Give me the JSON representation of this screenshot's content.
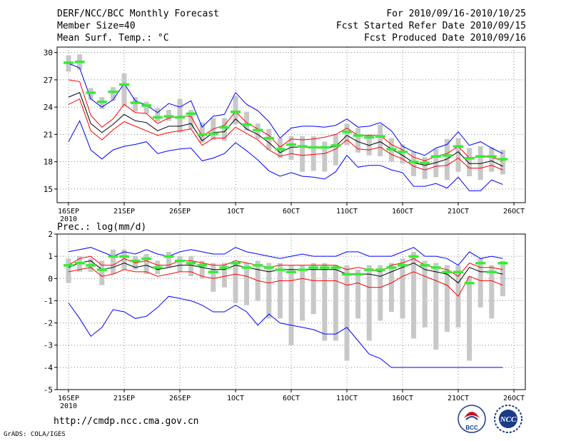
{
  "header": {
    "title": "DERF/NCC/BCC Monthly Forecast",
    "member_size": "Member Size=40",
    "variable": "Mean Surf. Temp.: °C",
    "forecast_period": "For 2010/09/16-2010/10/25",
    "started_date": "Fcst Started Refer Date 2010/09/15",
    "produced_date": "Fcst Produced Date 2010/09/16"
  },
  "footer": {
    "url": "http://cmdp.ncc.cma.gov.cn",
    "credit": "GrADS: COLA/IGES",
    "logo_bcc": "BCC",
    "logo_ncc": "NCC"
  },
  "colors": {
    "max_min": "#0000ff",
    "band": "#ff0000",
    "mean": "#000000",
    "box": "#c8c8c8",
    "median": "#33ee33"
  },
  "chart_data": [
    {
      "type": "line",
      "title": "Mean Surf. Temp.: °C",
      "xlabel": "",
      "ylabel": "°C",
      "ylim": [
        13.5,
        30.6
      ],
      "yticks": [
        15,
        18,
        21,
        24,
        27,
        30
      ],
      "xlim": [
        0,
        40
      ],
      "xticks": [
        {
          "x": 0,
          "label": "16SEP",
          "sub": "2010"
        },
        {
          "x": 5,
          "label": "21SEP"
        },
        {
          "x": 10,
          "label": "26SEP"
        },
        {
          "x": 15,
          "label": "1OCT"
        },
        {
          "x": 20,
          "label": "6OCT"
        },
        {
          "x": 25,
          "label": "11OCT"
        },
        {
          "x": 30,
          "label": "16OCT"
        },
        {
          "x": 35,
          "label": "21OCT"
        },
        {
          "x": 40,
          "label": "26OCT"
        }
      ],
      "grid": true,
      "x": [
        0,
        1,
        2,
        3,
        4,
        5,
        6,
        7,
        8,
        9,
        10,
        11,
        12,
        13,
        14,
        15,
        16,
        17,
        18,
        19,
        20,
        21,
        22,
        23,
        24,
        25,
        26,
        27,
        28,
        29,
        30,
        31,
        32,
        33,
        34,
        35,
        36,
        37,
        38,
        39
      ],
      "series": [
        {
          "name": "max",
          "values": [
            28.8,
            28.3,
            24.9,
            24.0,
            24.8,
            26.6,
            24.7,
            24.2,
            23.4,
            24.4,
            24.0,
            24.7,
            21.8,
            23.0,
            23.2,
            25.6,
            24.3,
            23.6,
            22.4,
            20.6,
            21.7,
            21.9,
            21.9,
            21.8,
            22.0,
            22.7,
            21.8,
            21.9,
            22.3,
            21.4,
            19.7,
            19.1,
            18.7,
            19.5,
            19.9,
            21.3,
            19.8,
            20.2,
            19.5,
            18.9
          ]
        },
        {
          "name": "upper",
          "values": [
            27.0,
            26.8,
            23.1,
            21.8,
            22.7,
            24.3,
            23.4,
            23.3,
            22.2,
            22.8,
            23.0,
            23.0,
            20.8,
            21.6,
            22.0,
            23.5,
            22.3,
            21.6,
            20.9,
            19.6,
            20.5,
            20.4,
            20.5,
            20.7,
            21.0,
            21.7,
            20.9,
            20.9,
            20.9,
            19.9,
            19.3,
            18.5,
            18.1,
            18.6,
            18.9,
            19.7,
            18.4,
            18.6,
            18.5,
            18.1
          ]
        },
        {
          "name": "mean",
          "values": [
            25.1,
            25.6,
            22.2,
            21.2,
            22.1,
            23.2,
            22.5,
            22.3,
            21.4,
            21.9,
            21.9,
            22.2,
            20.3,
            21.2,
            21.3,
            22.7,
            21.6,
            21.0,
            20.1,
            19.0,
            19.6,
            19.6,
            19.6,
            19.5,
            19.7,
            20.9,
            20.2,
            19.8,
            20.2,
            19.4,
            18.7,
            17.9,
            17.6,
            17.9,
            18.3,
            19.1,
            17.8,
            17.8,
            18.1,
            17.5
          ]
        },
        {
          "name": "lower",
          "values": [
            24.3,
            24.9,
            21.4,
            20.4,
            21.5,
            22.4,
            21.9,
            21.4,
            20.9,
            21.2,
            21.4,
            21.6,
            19.8,
            20.6,
            20.6,
            21.8,
            21.1,
            20.4,
            19.3,
            18.6,
            18.9,
            18.7,
            18.8,
            18.9,
            19.4,
            20.4,
            19.4,
            19.3,
            19.6,
            18.8,
            18.3,
            17.5,
            17.1,
            17.5,
            17.6,
            18.4,
            17.3,
            17.3,
            17.6,
            17.1
          ]
        },
        {
          "name": "min",
          "values": [
            20.2,
            22.5,
            19.3,
            18.3,
            19.3,
            19.7,
            19.9,
            20.2,
            18.9,
            19.2,
            19.4,
            19.5,
            18.1,
            18.4,
            18.9,
            20.1,
            19.2,
            18.2,
            17.0,
            16.4,
            16.8,
            16.4,
            16.3,
            16.1,
            16.9,
            18.7,
            17.4,
            17.6,
            17.6,
            17.1,
            16.8,
            15.3,
            15.3,
            15.6,
            15.1,
            16.3,
            14.8,
            14.8,
            16.0,
            15.5
          ]
        }
      ],
      "boxes": [
        {
          "low": 27.9,
          "high": 29.7,
          "median": 28.9
        },
        {
          "low": 28.1,
          "high": 29.8,
          "median": 29.0
        },
        {
          "low": 24.8,
          "high": 26.1,
          "median": 25.6
        },
        {
          "low": 23.8,
          "high": 25.1,
          "median": 24.6
        },
        {
          "low": 24.7,
          "high": 26.2,
          "median": 25.7
        },
        {
          "low": 24.1,
          "high": 27.7,
          "median": 26.5
        },
        {
          "low": 23.5,
          "high": 25.1,
          "median": 24.5
        },
        {
          "low": 23.3,
          "high": 24.6,
          "median": 24.2
        },
        {
          "low": 22.4,
          "high": 23.9,
          "median": 22.9
        },
        {
          "low": 22.5,
          "high": 23.7,
          "median": 23.0
        },
        {
          "low": 21.2,
          "high": 24.9,
          "median": 22.9
        },
        {
          "low": 21.6,
          "high": 23.7,
          "median": 23.3
        },
        {
          "low": 20.1,
          "high": 22.3,
          "median": 21.0
        },
        {
          "low": 20.4,
          "high": 22.8,
          "median": 21.1
        },
        {
          "low": 20.3,
          "high": 22.8,
          "median": 21.8
        },
        {
          "low": 22.1,
          "high": 25.2,
          "median": 23.5
        },
        {
          "low": 21.4,
          "high": 23.5,
          "median": 22.1
        },
        {
          "low": 20.5,
          "high": 22.2,
          "median": 21.5
        },
        {
          "low": 19.3,
          "high": 21.6,
          "median": 20.6
        },
        {
          "low": 18.4,
          "high": 20.6,
          "median": 19.4
        },
        {
          "low": 18.2,
          "high": 20.8,
          "median": 19.9
        },
        {
          "low": 16.9,
          "high": 20.8,
          "median": 19.7
        },
        {
          "low": 17.0,
          "high": 20.8,
          "median": 19.6
        },
        {
          "low": 16.9,
          "high": 20.2,
          "median": 19.6
        },
        {
          "low": 17.6,
          "high": 21.0,
          "median": 19.8
        },
        {
          "low": 19.8,
          "high": 22.2,
          "median": 21.3
        },
        {
          "low": 19.0,
          "high": 21.7,
          "median": 20.9
        },
        {
          "low": 18.7,
          "high": 21.0,
          "median": 20.7
        },
        {
          "low": 18.6,
          "high": 22.1,
          "median": 20.8
        },
        {
          "low": 18.0,
          "high": 20.6,
          "median": 19.4
        },
        {
          "low": 17.8,
          "high": 19.9,
          "median": 19.1
        },
        {
          "low": 16.4,
          "high": 19.1,
          "median": 18.0
        },
        {
          "low": 16.1,
          "high": 18.5,
          "median": 17.9
        },
        {
          "low": 16.3,
          "high": 19.4,
          "median": 18.6
        },
        {
          "low": 16.0,
          "high": 20.5,
          "median": 18.7
        },
        {
          "low": 16.9,
          "high": 20.6,
          "median": 19.7
        },
        {
          "low": 16.4,
          "high": 19.5,
          "median": 18.4
        },
        {
          "low": 16.0,
          "high": 19.7,
          "median": 18.6
        },
        {
          "low": 16.9,
          "high": 19.6,
          "median": 18.6
        },
        {
          "low": 16.6,
          "high": 19.3,
          "median": 18.3
        }
      ]
    },
    {
      "type": "line",
      "title": "Prec.: log(mm/d)",
      "xlabel": "",
      "ylabel": "log(mm/d)",
      "ylim": [
        -5,
        2
      ],
      "yticks": [
        -5,
        -4,
        -3,
        -2,
        -1,
        0,
        1,
        2
      ],
      "xlim": [
        0,
        40
      ],
      "xticks": [
        {
          "x": 0,
          "label": "16SEP",
          "sub": "2010"
        },
        {
          "x": 5,
          "label": "21SEP"
        },
        {
          "x": 10,
          "label": "26SEP"
        },
        {
          "x": 15,
          "label": "1OCT"
        },
        {
          "x": 20,
          "label": "6OCT"
        },
        {
          "x": 25,
          "label": "11OCT"
        },
        {
          "x": 30,
          "label": "16OCT"
        },
        {
          "x": 35,
          "label": "21OCT"
        },
        {
          "x": 40,
          "label": "26OCT"
        }
      ],
      "grid": true,
      "x": [
        0,
        1,
        2,
        3,
        4,
        5,
        6,
        7,
        8,
        9,
        10,
        11,
        12,
        13,
        14,
        15,
        16,
        17,
        18,
        19,
        20,
        21,
        22,
        23,
        24,
        25,
        26,
        27,
        28,
        29,
        30,
        31,
        32,
        33,
        34,
        35,
        36,
        37,
        38,
        39
      ],
      "series": [
        {
          "name": "max",
          "values": [
            1.2,
            1.3,
            1.4,
            1.2,
            1.0,
            1.2,
            1.1,
            1.3,
            1.1,
            1.0,
            1.2,
            1.3,
            1.2,
            1.1,
            1.1,
            1.4,
            1.2,
            1.1,
            1.0,
            0.9,
            1.0,
            1.1,
            1.0,
            1.0,
            1.0,
            1.2,
            1.2,
            1.0,
            1.0,
            1.0,
            1.2,
            1.4,
            1.0,
            1.0,
            0.9,
            0.6,
            1.2,
            0.9,
            1.0,
            0.9
          ]
        },
        {
          "name": "upper",
          "values": [
            0.6,
            0.9,
            1.0,
            0.6,
            0.6,
            0.9,
            0.7,
            0.8,
            0.6,
            0.6,
            0.8,
            0.8,
            0.7,
            0.6,
            0.6,
            0.8,
            0.7,
            0.6,
            0.5,
            0.6,
            0.6,
            0.6,
            0.6,
            0.6,
            0.6,
            0.4,
            0.5,
            0.4,
            0.3,
            0.6,
            0.7,
            0.9,
            0.6,
            0.5,
            0.4,
            0.1,
            0.7,
            0.5,
            0.5,
            0.4
          ]
        },
        {
          "name": "mean",
          "values": [
            0.5,
            0.7,
            0.8,
            0.4,
            0.5,
            0.7,
            0.5,
            0.6,
            0.4,
            0.5,
            0.6,
            0.6,
            0.5,
            0.4,
            0.4,
            0.6,
            0.5,
            0.4,
            0.3,
            0.4,
            0.4,
            0.4,
            0.4,
            0.4,
            0.4,
            0.2,
            0.2,
            0.2,
            0.1,
            0.3,
            0.5,
            0.7,
            0.4,
            0.3,
            0.2,
            -0.2,
            0.5,
            0.3,
            0.3,
            0.2
          ]
        },
        {
          "name": "lower",
          "values": [
            0.3,
            0.4,
            0.5,
            0.1,
            0.2,
            0.4,
            0.3,
            0.3,
            0.1,
            0.2,
            0.3,
            0.3,
            0.1,
            0.0,
            0.1,
            0.2,
            0.1,
            -0.1,
            -0.2,
            -0.1,
            -0.1,
            0.0,
            -0.1,
            -0.1,
            -0.1,
            -0.3,
            -0.2,
            -0.4,
            -0.4,
            -0.2,
            0.1,
            0.3,
            0.1,
            -0.1,
            -0.3,
            -0.8,
            0.1,
            -0.1,
            -0.1,
            -0.3
          ]
        },
        {
          "name": "min",
          "values": [
            -1.1,
            -1.8,
            -2.6,
            -2.2,
            -1.4,
            -1.5,
            -1.8,
            -1.7,
            -1.3,
            -0.8,
            -0.9,
            -1.0,
            -1.2,
            -1.5,
            -1.5,
            -1.2,
            -1.5,
            -2.1,
            -1.6,
            -2.0,
            -2.1,
            -2.2,
            -2.3,
            -2.5,
            -2.5,
            -2.2,
            -2.8,
            -3.4,
            -3.6,
            -4.0,
            -4.0,
            -4.0,
            -4.0,
            -4.0,
            -4.0,
            -4.0,
            -4.0,
            -4.0,
            -4.0,
            -4.0
          ]
        }
      ],
      "boxes": [
        {
          "low": -0.2,
          "high": 0.9,
          "median": 0.6
        },
        {
          "low": 0.3,
          "high": 1.0,
          "median": 0.7
        },
        {
          "low": 0.3,
          "high": 0.9,
          "median": 0.6
        },
        {
          "low": -0.3,
          "high": 0.8,
          "median": 0.4
        },
        {
          "low": 0.2,
          "high": 1.3,
          "median": 1.0
        },
        {
          "low": 0.4,
          "high": 1.3,
          "median": 1.0
        },
        {
          "low": 0.4,
          "high": 1.0,
          "median": 0.8
        },
        {
          "low": 0.2,
          "high": 1.1,
          "median": 0.9
        },
        {
          "low": 0.2,
          "high": 0.8,
          "median": 0.5
        },
        {
          "low": 0.5,
          "high": 1.2,
          "median": 1.0
        },
        {
          "low": 0.3,
          "high": 1.0,
          "median": 0.8
        },
        {
          "low": 0.1,
          "high": 1.0,
          "median": 0.7
        },
        {
          "low": 0.0,
          "high": 0.8,
          "median": 0.6
        },
        {
          "low": -0.6,
          "high": 0.7,
          "median": 0.3
        },
        {
          "low": -0.4,
          "high": 0.7,
          "median": 0.5
        },
        {
          "low": -1.1,
          "high": 0.7,
          "median": 0.7
        },
        {
          "low": -1.2,
          "high": 0.7,
          "median": 0.5
        },
        {
          "low": -1.0,
          "high": 0.8,
          "median": 0.6
        },
        {
          "low": -1.8,
          "high": 0.7,
          "median": 0.5
        },
        {
          "low": -1.8,
          "high": 0.7,
          "median": 0.4
        },
        {
          "low": -3.0,
          "high": 0.6,
          "median": 0.3
        },
        {
          "low": -1.9,
          "high": 0.6,
          "median": 0.4
        },
        {
          "low": -1.6,
          "high": 0.7,
          "median": 0.5
        },
        {
          "low": -2.8,
          "high": 0.7,
          "median": 0.5
        },
        {
          "low": -2.8,
          "high": 0.6,
          "median": 0.5
        },
        {
          "low": -3.7,
          "high": 0.6,
          "median": 0.2
        },
        {
          "low": -1.8,
          "high": 0.4,
          "median": 0.2
        },
        {
          "low": -2.8,
          "high": 0.6,
          "median": 0.4
        },
        {
          "low": -1.9,
          "high": 0.6,
          "median": 0.4
        },
        {
          "low": -1.5,
          "high": 0.7,
          "median": 0.5
        },
        {
          "low": -1.8,
          "high": 0.9,
          "median": 0.6
        },
        {
          "low": -2.7,
          "high": 1.2,
          "median": 1.0
        },
        {
          "low": -2.2,
          "high": 0.8,
          "median": 0.6
        },
        {
          "low": -3.2,
          "high": 0.7,
          "median": 0.5
        },
        {
          "low": -2.4,
          "high": 0.6,
          "median": 0.3
        },
        {
          "low": -2.2,
          "high": 0.6,
          "median": 0.3
        },
        {
          "low": -3.7,
          "high": 0.1,
          "median": -0.2
        },
        {
          "low": -1.3,
          "high": 0.9,
          "median": 0.7
        },
        {
          "low": -1.8,
          "high": 0.6,
          "median": 0.3
        },
        {
          "low": -0.8,
          "high": 0.8,
          "median": 0.7
        }
      ]
    }
  ]
}
